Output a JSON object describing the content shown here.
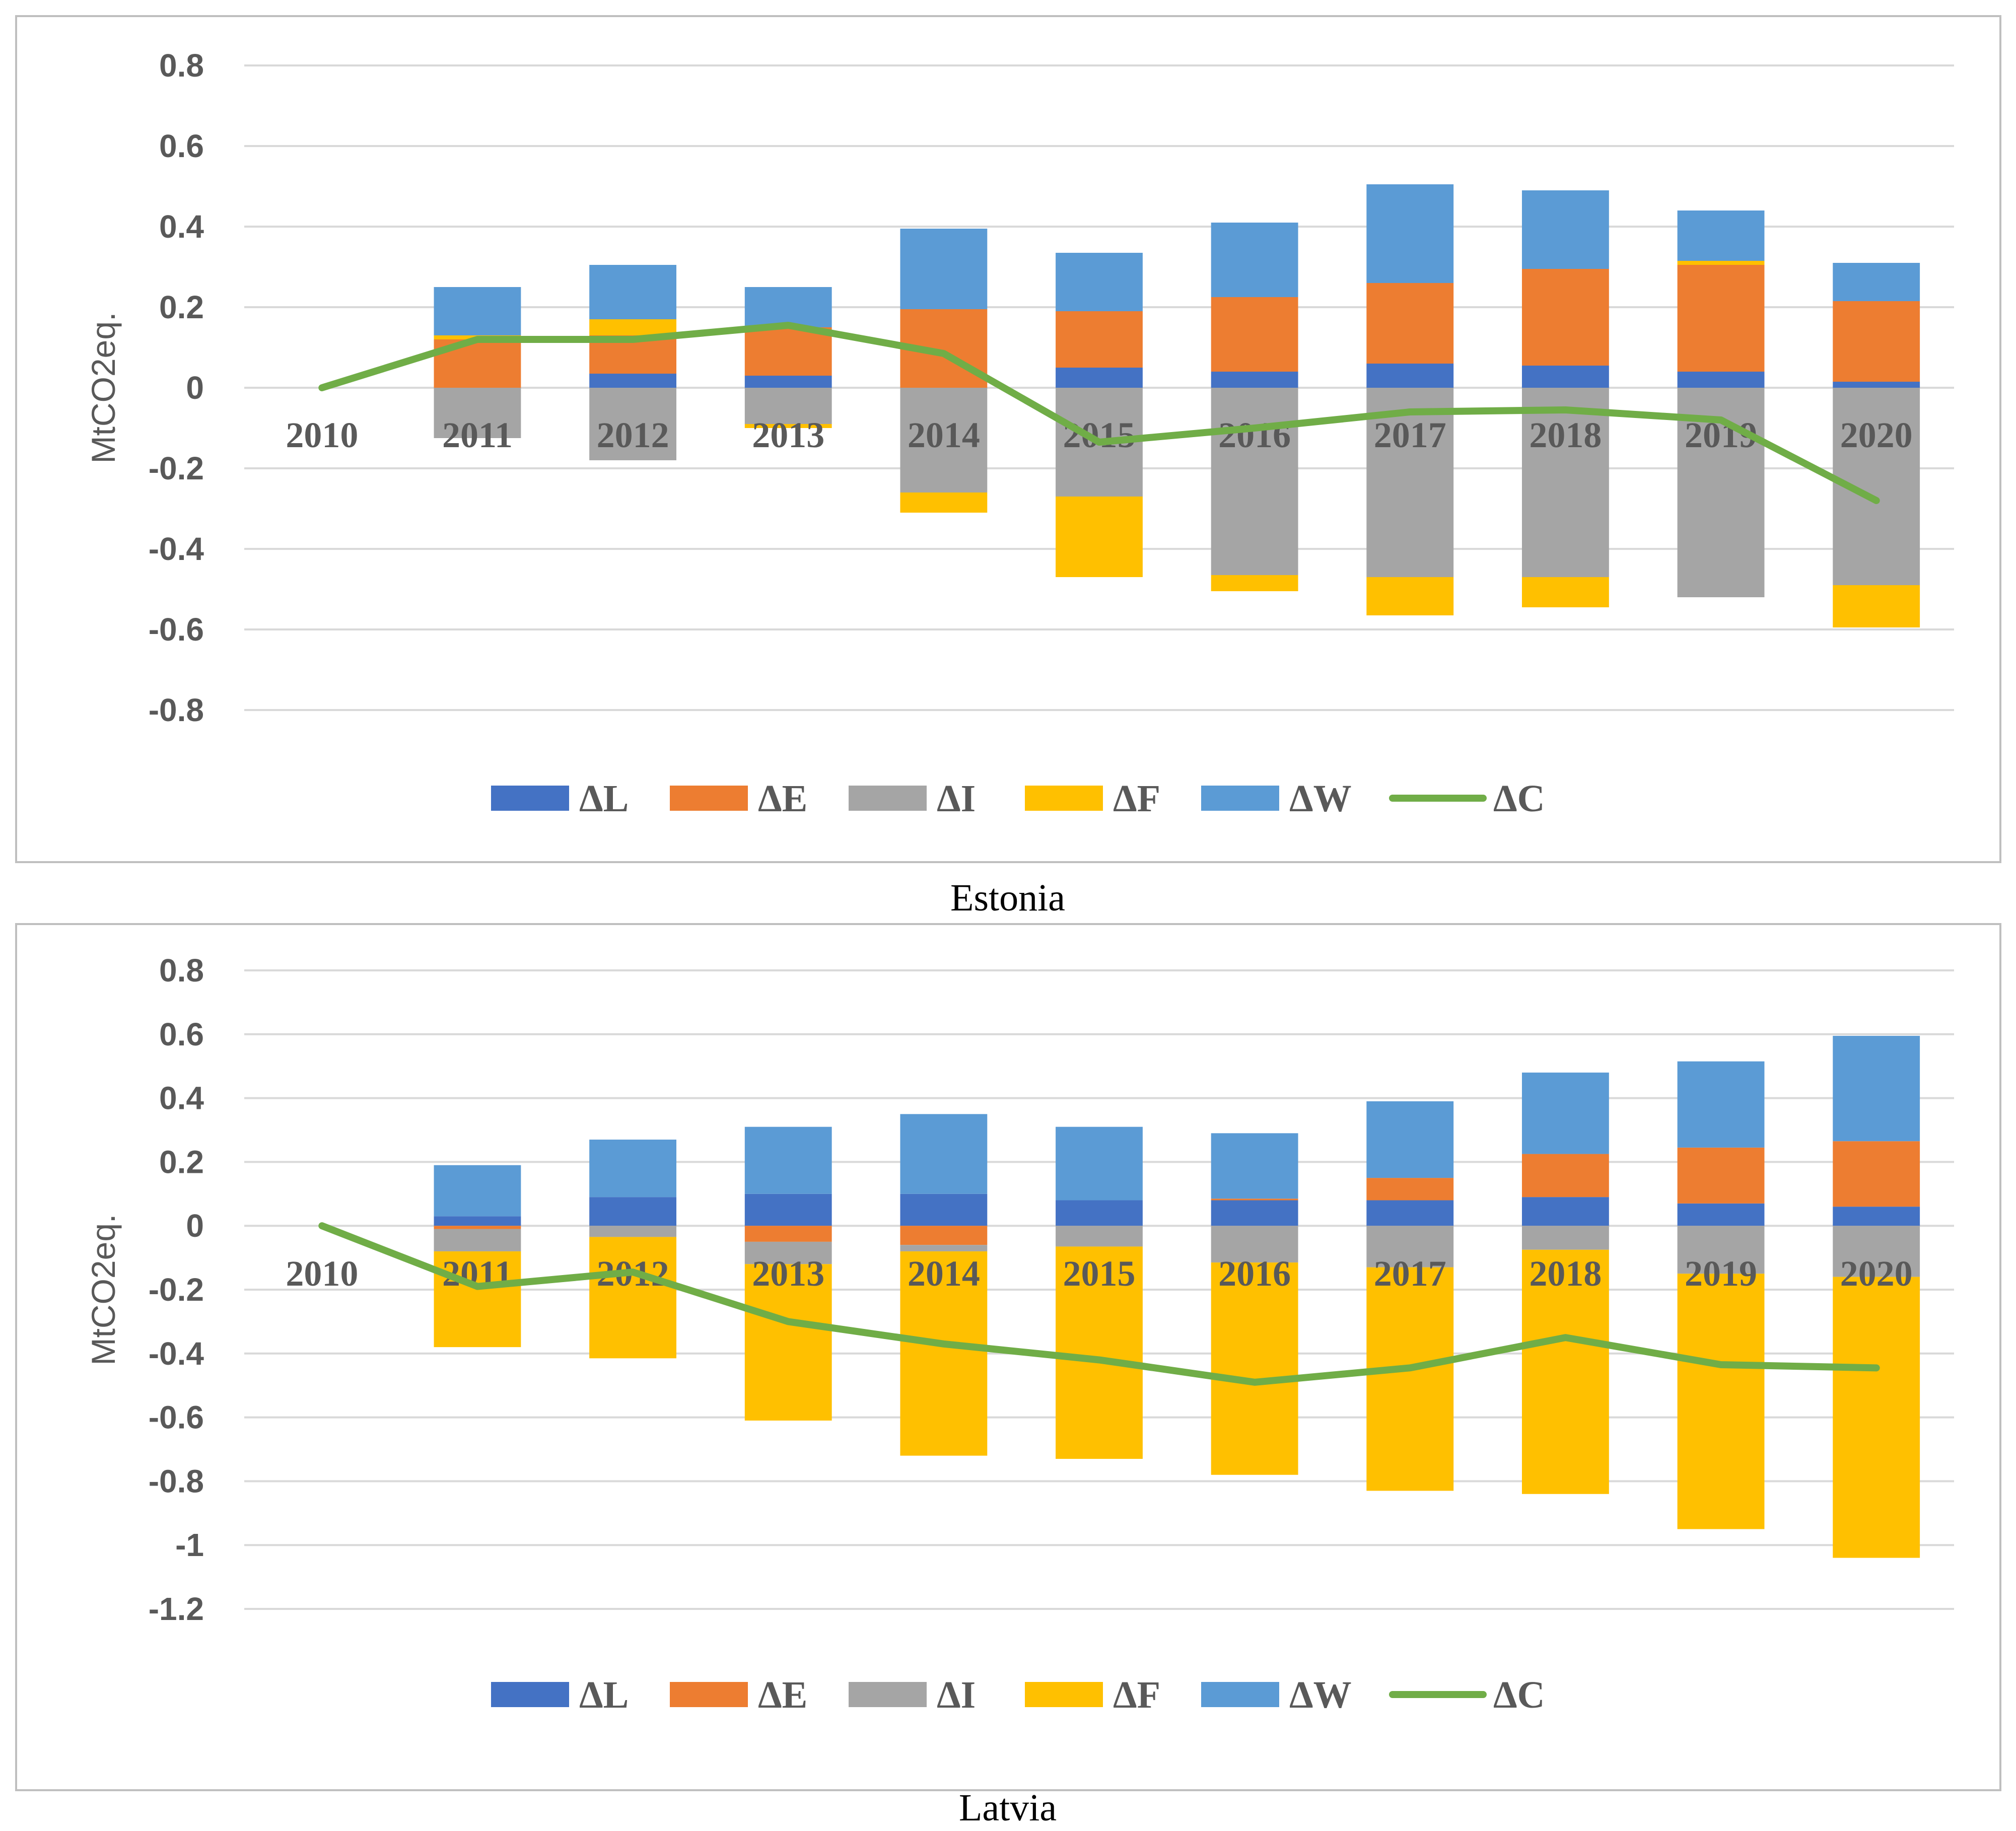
{
  "chart_data": [
    {
      "type": "bar",
      "stacked": true,
      "caption": "Estonia",
      "ylabel": "MtCO2eq.",
      "ylim": [
        -0.8,
        0.8
      ],
      "yticks": [
        0.8,
        0.6,
        0.4,
        0.2,
        0,
        -0.2,
        -0.4,
        -0.6,
        -0.8
      ],
      "ytick_labels": [
        "0.8",
        "0.6",
        "0.4",
        "0.2",
        "0",
        "-0.2",
        "-0.4",
        "-0.6",
        "-0.8"
      ],
      "categories": [
        "2010",
        "2011",
        "2012",
        "2013",
        "2014",
        "2015",
        "2016",
        "2017",
        "2018",
        "2019",
        "2020"
      ],
      "grid": true,
      "legend_position": "bottom",
      "series": [
        {
          "name": "ΔL",
          "kind": "bar",
          "color": "#4472c4",
          "values": [
            0,
            0,
            0.035,
            0.03,
            0,
            0.05,
            0.04,
            0.06,
            0.055,
            0.04,
            0.015
          ]
        },
        {
          "name": "ΔE",
          "kind": "bar",
          "color": "#ed7d31",
          "values": [
            0,
            0.12,
            0.095,
            0.12,
            0.195,
            0.14,
            0.185,
            0.2,
            0.24,
            0.265,
            0.2
          ]
        },
        {
          "name": "ΔI",
          "kind": "bar",
          "color": "#a5a5a5",
          "values": [
            0,
            -0.125,
            -0.18,
            -0.09,
            -0.26,
            -0.27,
            -0.465,
            -0.47,
            -0.47,
            -0.52,
            -0.49
          ]
        },
        {
          "name": "ΔF",
          "kind": "bar",
          "color": "#ffc000",
          "values": [
            0,
            0.01,
            0.04,
            -0.01,
            -0.05,
            -0.2,
            -0.04,
            -0.095,
            -0.075,
            0.01,
            -0.105
          ]
        },
        {
          "name": "ΔW",
          "kind": "bar",
          "color": "#5b9bd5",
          "values": [
            0,
            0.12,
            0.135,
            0.1,
            0.2,
            0.145,
            0.185,
            0.245,
            0.195,
            0.125,
            0.095
          ]
        },
        {
          "name": "ΔC",
          "kind": "line",
          "color": "#70ad47",
          "values": [
            0,
            0.12,
            0.12,
            0.155,
            0.085,
            -0.135,
            -0.1,
            -0.06,
            -0.055,
            -0.08,
            -0.28
          ]
        }
      ]
    },
    {
      "type": "bar",
      "stacked": true,
      "caption": "Latvia",
      "ylabel": "MtCO2eq.",
      "ylim": [
        -1.2,
        0.8
      ],
      "yticks": [
        0.8,
        0.6,
        0.4,
        0.2,
        0,
        -0.2,
        -0.4,
        -0.6,
        -0.8,
        -1,
        -1.2
      ],
      "ytick_labels": [
        "0.8",
        "0.6",
        "0.4",
        "0.2",
        "0",
        "-0.2",
        "-0.4",
        "-0.6",
        "-0.8",
        "-1",
        "-1.2"
      ],
      "categories": [
        "2010",
        "2011",
        "2012",
        "2013",
        "2014",
        "2015",
        "2016",
        "2017",
        "2018",
        "2019",
        "2020"
      ],
      "grid": true,
      "legend_position": "bottom",
      "series": [
        {
          "name": "ΔL",
          "kind": "bar",
          "color": "#4472c4",
          "values": [
            0,
            0.03,
            0.09,
            0.1,
            0.1,
            0.08,
            0.08,
            0.08,
            0.09,
            0.07,
            0.06
          ]
        },
        {
          "name": "ΔE",
          "kind": "bar",
          "color": "#ed7d31",
          "values": [
            0,
            -0.01,
            0,
            -0.05,
            -0.06,
            0,
            0.005,
            0.07,
            0.135,
            0.175,
            0.205
          ]
        },
        {
          "name": "ΔI",
          "kind": "bar",
          "color": "#a5a5a5",
          "values": [
            0,
            -0.07,
            -0.035,
            -0.07,
            -0.02,
            -0.065,
            -0.115,
            -0.13,
            -0.075,
            -0.15,
            -0.16
          ]
        },
        {
          "name": "ΔF",
          "kind": "bar",
          "color": "#ffc000",
          "values": [
            0,
            -0.3,
            -0.38,
            -0.49,
            -0.64,
            -0.665,
            -0.665,
            -0.7,
            -0.765,
            -0.8,
            -0.88
          ]
        },
        {
          "name": "ΔW",
          "kind": "bar",
          "color": "#5b9bd5",
          "values": [
            0,
            0.16,
            0.18,
            0.21,
            0.25,
            0.23,
            0.205,
            0.24,
            0.255,
            0.27,
            0.33
          ]
        },
        {
          "name": "ΔC",
          "kind": "line",
          "color": "#70ad47",
          "values": [
            0,
            -0.19,
            -0.145,
            -0.3,
            -0.37,
            -0.42,
            -0.49,
            -0.445,
            -0.35,
            -0.435,
            -0.445
          ]
        }
      ]
    }
  ]
}
